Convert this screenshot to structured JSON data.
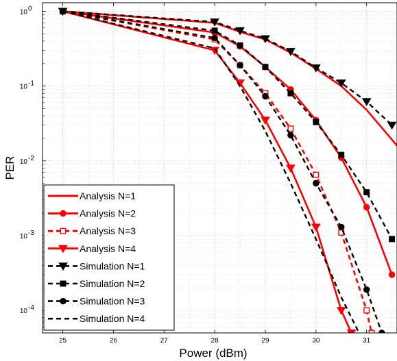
{
  "chart_data": {
    "type": "line",
    "xlabel": "Power (dBm)",
    "ylabel": "PER",
    "x_ticks": [
      25,
      26,
      27,
      28,
      29,
      30,
      31
    ],
    "y_ticks": [
      {
        "value": 1,
        "label": "10",
        "exp": "0"
      },
      {
        "value": 0.1,
        "label": "10",
        "exp": "-1"
      },
      {
        "value": 0.01,
        "label": "10",
        "exp": "-2"
      },
      {
        "value": 0.001,
        "label": "10",
        "exp": "-3"
      },
      {
        "value": 0.0001,
        "label": "10",
        "exp": "-4"
      }
    ],
    "xlim": [
      24.6,
      31.6
    ],
    "ylim": [
      5e-05,
      1.3
    ],
    "y_scale": "log",
    "grid": true,
    "legend_position": "bottom-left",
    "series": [
      {
        "name": "Analysis N=1",
        "color": "#ff0000",
        "dash": "solid",
        "marker": "none",
        "x": [
          25,
          28,
          28.5,
          29,
          29.5,
          30,
          30.5,
          31,
          31.6
        ],
        "y": [
          1.0,
          0.7,
          0.53,
          0.42,
          0.28,
          0.17,
          0.1,
          0.048,
          0.016
        ]
      },
      {
        "name": "Analysis N=2",
        "color": "#ff0000",
        "dash": "solid",
        "marker": "circle",
        "x": [
          25,
          28,
          28.5,
          29,
          29.5,
          30,
          30.5,
          31,
          31.5
        ],
        "y": [
          1.0,
          0.52,
          0.34,
          0.18,
          0.09,
          0.035,
          0.011,
          0.0024,
          0.0003
        ]
      },
      {
        "name": "Analysis N=3",
        "color": "#ff0000",
        "dash": "dashed",
        "marker": "square",
        "x": [
          25,
          28,
          28.5,
          29,
          29.5,
          30,
          30.5,
          31,
          31.1
        ],
        "y": [
          1.0,
          0.42,
          0.19,
          0.08,
          0.027,
          0.0065,
          0.0011,
          0.0001,
          5e-05
        ]
      },
      {
        "name": "Analysis N=4",
        "color": "#ff0000",
        "dash": "solid",
        "marker": "triangle-down",
        "x": [
          25,
          28,
          28.5,
          29,
          29.5,
          30,
          30.5,
          30.7
        ],
        "y": [
          1.0,
          0.3,
          0.11,
          0.035,
          0.008,
          0.0013,
          0.0001,
          5e-05
        ]
      },
      {
        "name": "Simulation N=1",
        "color": "#000000",
        "dash": "dashed",
        "marker": "triangle-down",
        "x": [
          25,
          28,
          28.5,
          29,
          29.5,
          30,
          30.5,
          31,
          31.5
        ],
        "y": [
          1.0,
          0.72,
          0.55,
          0.43,
          0.29,
          0.175,
          0.11,
          0.062,
          0.03
        ]
      },
      {
        "name": "Simulation N=2",
        "color": "#000000",
        "dash": "dashed",
        "marker": "square",
        "x": [
          25,
          28,
          28.5,
          29,
          29.5,
          30,
          30.5,
          31,
          31.5
        ],
        "y": [
          1.0,
          0.55,
          0.35,
          0.18,
          0.08,
          0.033,
          0.012,
          0.0038,
          0.0009
        ]
      },
      {
        "name": "Simulation N=3",
        "color": "#000000",
        "dash": "dashed",
        "marker": "circle",
        "x": [
          25,
          28,
          28.5,
          29,
          29.5,
          30,
          30.5,
          31,
          31.3
        ],
        "y": [
          1.0,
          0.44,
          0.19,
          0.073,
          0.022,
          0.005,
          0.0013,
          0.00019,
          5e-05
        ]
      },
      {
        "name": "Simulation N=4",
        "color": "#000000",
        "dash": "dashed",
        "marker": "none",
        "x": [
          25,
          28,
          28.5,
          29,
          29.5,
          30,
          30.5,
          30.85
        ],
        "y": [
          1.0,
          0.32,
          0.1,
          0.025,
          0.005,
          0.0009,
          0.00015,
          5e-05
        ]
      }
    ]
  }
}
